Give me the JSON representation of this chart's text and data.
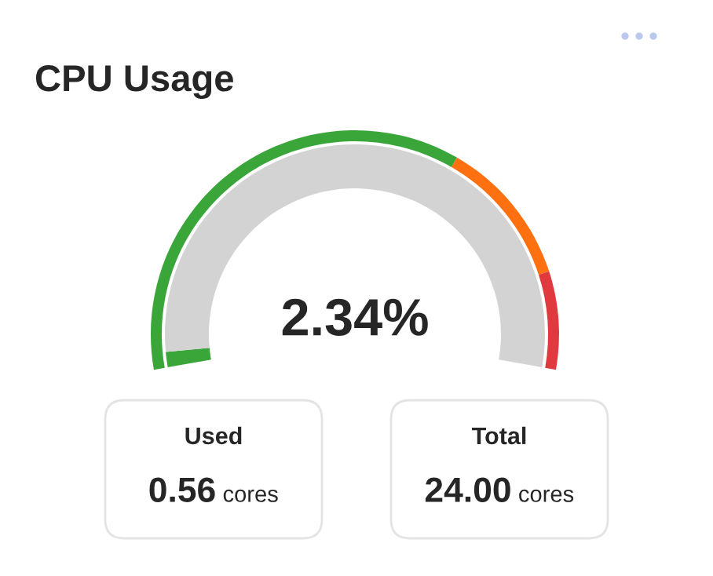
{
  "chart_data": [
    {
      "type": "donut",
      "title": "CPU Usage",
      "annotations": [
        "2.34%"
      ],
      "series": [
        {
          "values": [
            2.34,
            97.66
          ],
          "colors": [
            "#3aa63a",
            "#d3d3d3"
          ]
        },
        {
          "values": [
            65,
            21,
            14
          ],
          "colors": [
            "#3aa63a",
            "#ff7010",
            "#e03a3e"
          ]
        }
      ]
    },
    {
      "type": "other",
      "annotations": [
        "Used",
        "0.56",
        "cores"
      ]
    },
    {
      "type": "other",
      "annotations": [
        "Total",
        "24.00",
        "cores"
      ]
    }
  ]
}
